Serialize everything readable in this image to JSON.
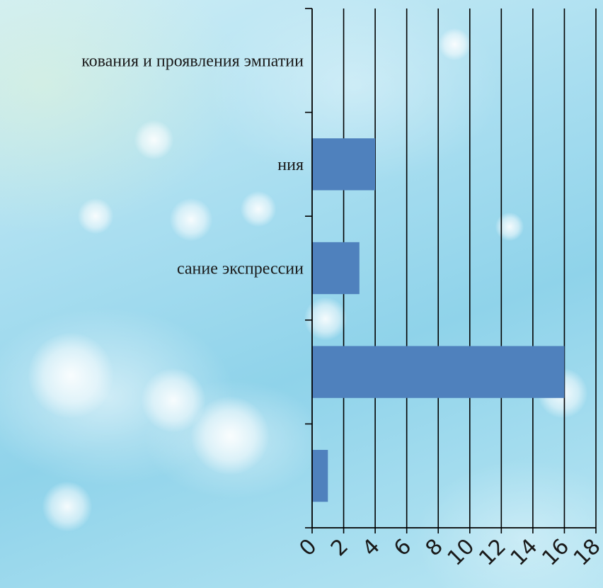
{
  "chart_data": {
    "type": "bar",
    "orientation": "horizontal",
    "categories": [
      "кования и проявления эмпатии",
      "ния",
      "сание экспрессии",
      "",
      ""
    ],
    "values": [
      0,
      4,
      3,
      16,
      1
    ],
    "xlim": [
      0,
      18
    ],
    "xticks": [
      "0",
      "2",
      "4",
      "6",
      "8",
      "10",
      "12",
      "14",
      "16",
      "18"
    ],
    "grid": true,
    "bar_color": "#4f81bd",
    "grid_color": "#000000",
    "title": "",
    "xlabel": "",
    "ylabel": ""
  }
}
